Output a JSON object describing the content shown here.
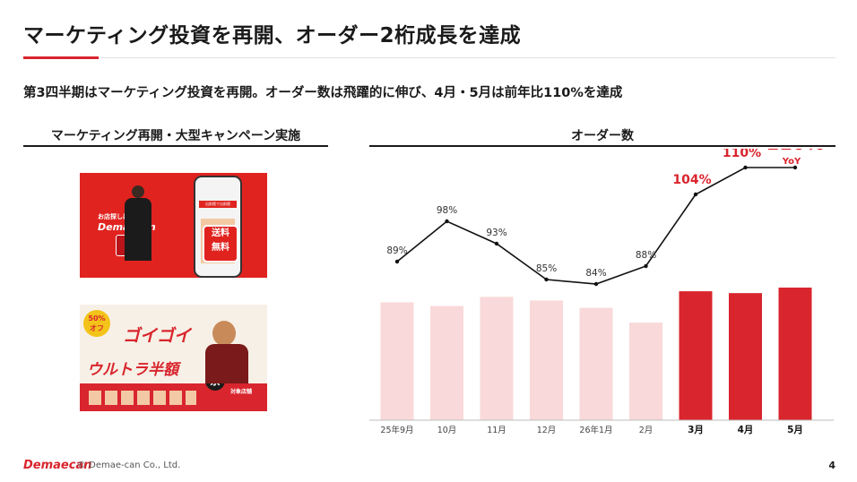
{
  "header": {
    "title": "マーケティング投資を再開、オーダー2桁成長を達成",
    "subtitle": "第3四半期はマーケティング投資を再開。オーダー数は飛躍的に伸び、4月・5月は前年比110%を達成"
  },
  "left_panel": {
    "label": "マーケティング再開・大型キャンペーン実施",
    "ad1": {
      "tagline": "お店探しは、",
      "brand": "Demaecan",
      "banner_text": "出前館で出前館",
      "badge_line1": "送料",
      "badge_line2": "無料"
    },
    "ad2": {
      "badge_top": "50%",
      "badge_bottom": "オフ",
      "headline1": "ゴイゴイ",
      "headline2": "ウルトラ半額",
      "headline3": "祭",
      "note": "対象店舗"
    }
  },
  "right_panel": {
    "label": "オーダー数"
  },
  "chart_data": {
    "type": "bar",
    "title": "オーダー数",
    "categories": [
      "25年9月",
      "10月",
      "11月",
      "12月",
      "26年1月",
      "2月",
      "3月",
      "4月",
      "5月"
    ],
    "bold_categories": [
      false,
      false,
      false,
      false,
      false,
      false,
      true,
      true,
      true
    ],
    "values": [
      64,
      62,
      67,
      65,
      61,
      53,
      70,
      69,
      72
    ],
    "yoy_label": "YoY",
    "yoy": [
      "89%",
      "98%",
      "93%",
      "85%",
      "84%",
      "88%",
      "104%",
      "110%",
      "110%"
    ],
    "yoy_values": [
      89,
      98,
      93,
      85,
      84,
      88,
      104,
      110,
      110
    ],
    "colors": {
      "bar_light": "#f9d9d9",
      "bar_dark": "#d9252d",
      "line": "#111111",
      "label_highlight": "#d9252d"
    },
    "grid": false
  },
  "footer": {
    "logo": "Demaecan",
    "copyright": "© Demae-can Co., Ltd.",
    "page": "4"
  }
}
